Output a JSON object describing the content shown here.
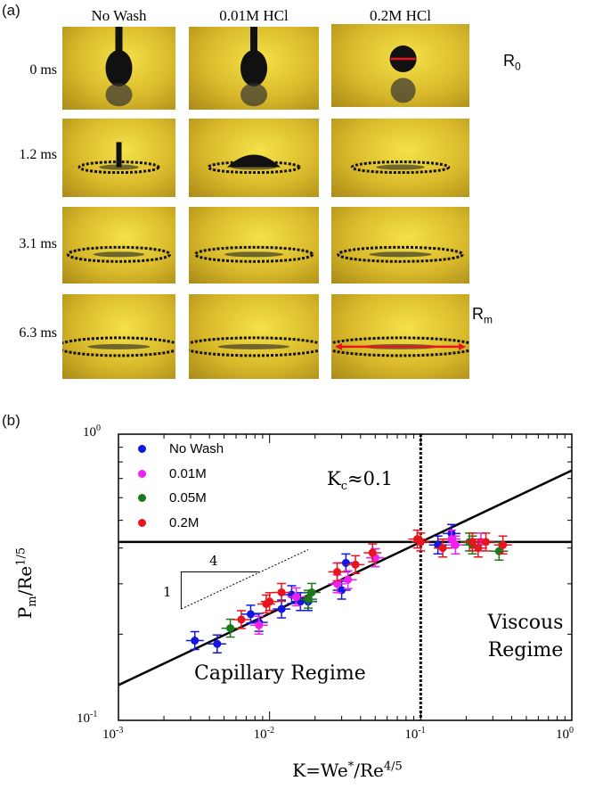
{
  "panel_a": {
    "label": "(a)",
    "columns": [
      "No Wash",
      "0.01M HCl",
      "0.2M HCl"
    ],
    "times": [
      "0 ms",
      "1.2 ms",
      "3.1 ms",
      "6.3 ms"
    ],
    "annotations": {
      "r0": "R",
      "r0_sub": "0",
      "rm": "R",
      "rm_sub": "m"
    },
    "arrow_color": "#e8141e"
  },
  "panel_b": {
    "label": "(b)"
  },
  "chart_data": {
    "type": "scatter",
    "xscale": "log",
    "yscale": "log",
    "xlim": [
      0.001,
      1
    ],
    "ylim": [
      0.1,
      1
    ],
    "xticks": [
      {
        "b": "10",
        "e": "-3"
      },
      {
        "b": "10",
        "e": "-2"
      },
      {
        "b": "10",
        "e": "-1"
      },
      {
        "b": "10",
        "e": "0"
      }
    ],
    "yticks": [
      {
        "b": "10",
        "e": "0"
      },
      {
        "b": "10",
        "e": "-1"
      }
    ],
    "xlabel": {
      "main": "K=We",
      "sup1": "*",
      "mid": "/Re",
      "sup2": "4/5"
    },
    "ylabel": {
      "main": "P",
      "sub": "m",
      "mid": "/Re",
      "sup": "1/5"
    },
    "legend_position": "top-left",
    "series": [
      {
        "name": "No Wash",
        "color": "#1515e0",
        "points": [
          [
            0.0032,
            0.19
          ],
          [
            0.0045,
            0.185
          ],
          [
            0.0075,
            0.235
          ],
          [
            0.0085,
            0.22
          ],
          [
            0.012,
            0.245
          ],
          [
            0.014,
            0.275
          ],
          [
            0.016,
            0.26
          ],
          [
            0.018,
            0.26
          ],
          [
            0.03,
            0.285
          ],
          [
            0.032,
            0.355
          ],
          [
            0.05,
            0.37
          ],
          [
            0.13,
            0.41
          ],
          [
            0.16,
            0.45
          ]
        ]
      },
      {
        "name": "0.01M",
        "color": "#f020f0",
        "points": [
          [
            0.0085,
            0.215
          ],
          [
            0.015,
            0.27
          ],
          [
            0.028,
            0.3
          ],
          [
            0.033,
            0.31
          ],
          [
            0.05,
            0.37
          ],
          [
            0.16,
            0.43
          ],
          [
            0.17,
            0.41
          ],
          [
            0.25,
            0.42
          ]
        ]
      },
      {
        "name": "0.05M",
        "color": "#1a7a1a",
        "points": [
          [
            0.0055,
            0.21
          ],
          [
            0.018,
            0.265
          ],
          [
            0.019,
            0.28
          ],
          [
            0.21,
            0.42
          ],
          [
            0.22,
            0.41
          ],
          [
            0.33,
            0.39
          ]
        ]
      },
      {
        "name": "0.2M",
        "color": "#e8141e",
        "points": [
          [
            0.0065,
            0.225
          ],
          [
            0.0095,
            0.255
          ],
          [
            0.01,
            0.26
          ],
          [
            0.012,
            0.28
          ],
          [
            0.028,
            0.33
          ],
          [
            0.037,
            0.35
          ],
          [
            0.048,
            0.385
          ],
          [
            0.095,
            0.43
          ],
          [
            0.1,
            0.42
          ],
          [
            0.14,
            0.4
          ],
          [
            0.22,
            0.42
          ],
          [
            0.24,
            0.4
          ],
          [
            0.27,
            0.42
          ],
          [
            0.35,
            0.41
          ]
        ]
      }
    ],
    "fit_lines": [
      {
        "kind": "power",
        "slope": 0.25,
        "through": [
          0.1,
          0.42
        ]
      },
      {
        "kind": "horizontal",
        "y": 0.42
      }
    ],
    "vertical_line": {
      "x": 0.1,
      "style": "dotted"
    },
    "slope_triangle": {
      "run": "4",
      "rise": "1"
    },
    "annotations": {
      "kc": "K",
      "kc_sub": "c",
      "kc_rest": "≈0.1",
      "capillary": "Capillary Regime",
      "viscous1": "Viscous",
      "viscous2": "Regime"
    }
  }
}
